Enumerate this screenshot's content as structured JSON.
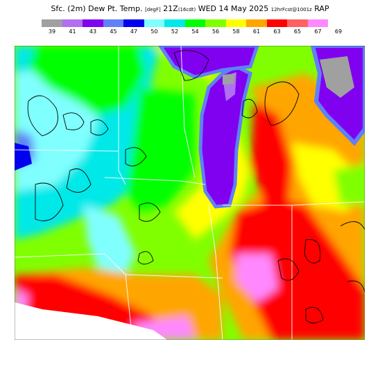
{
  "title": {
    "main": "Sfc. (2m) Dew Pt. Temp.",
    "units": "[degF]",
    "time": "21Z",
    "local": "(16cdt)",
    "date": "WED 14 May 2025",
    "forecast": "12hrFcst@1001z",
    "model": "RAP"
  },
  "legend": {
    "colors": [
      "#a0a0a0",
      "#b070f0",
      "#8000f0",
      "#6080f8",
      "#0000ee",
      "#80ffff",
      "#00e8e8",
      "#00ff00",
      "#80ff00",
      "#ffff00",
      "#ffa500",
      "#ff0000",
      "#ff6060",
      "#ff88ff"
    ],
    "labels": [
      "39",
      "41",
      "43",
      "45",
      "47",
      "50",
      "52",
      "54",
      "56",
      "58",
      "61",
      "63",
      "65",
      "67",
      "69"
    ]
  }
}
